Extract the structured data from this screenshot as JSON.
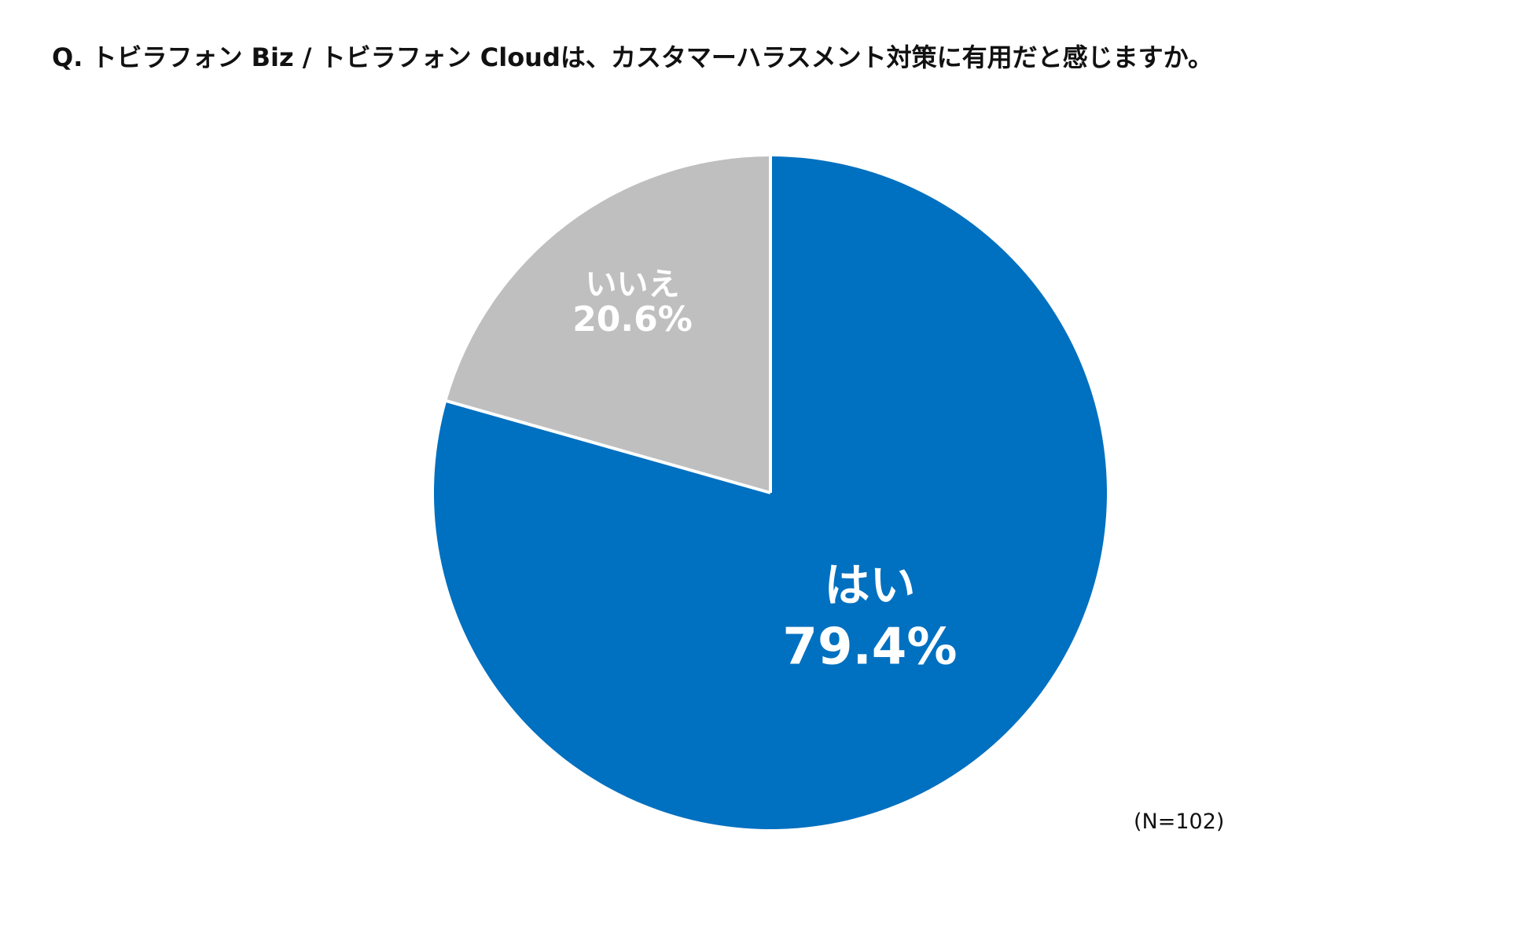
{
  "title": "Q. トビラフォン Biz / トビラフォン Cloudは、カスタマーハラスメント対策に有用だと感じますか。",
  "sample_size": "(N=102)",
  "colors": {
    "yes": "#0070C0",
    "no": "#BFBFBF",
    "separator": "#ffffff",
    "label": "#ffffff"
  },
  "chart_data": {
    "type": "pie",
    "title": "Q. トビラフォン Biz / トビラフォン Cloudは、カスタマーハラスメント対策に有用だと感じますか。",
    "start": "12 o'clock",
    "direction": "clockwise",
    "slices": [
      {
        "label": "はい",
        "value": 79.4,
        "value_label": "79.4%",
        "color": "#0070C0"
      },
      {
        "label": "いいえ",
        "value": 20.6,
        "value_label": "20.6%",
        "color": "#BFBFBF"
      }
    ],
    "note": "(N=102)"
  }
}
